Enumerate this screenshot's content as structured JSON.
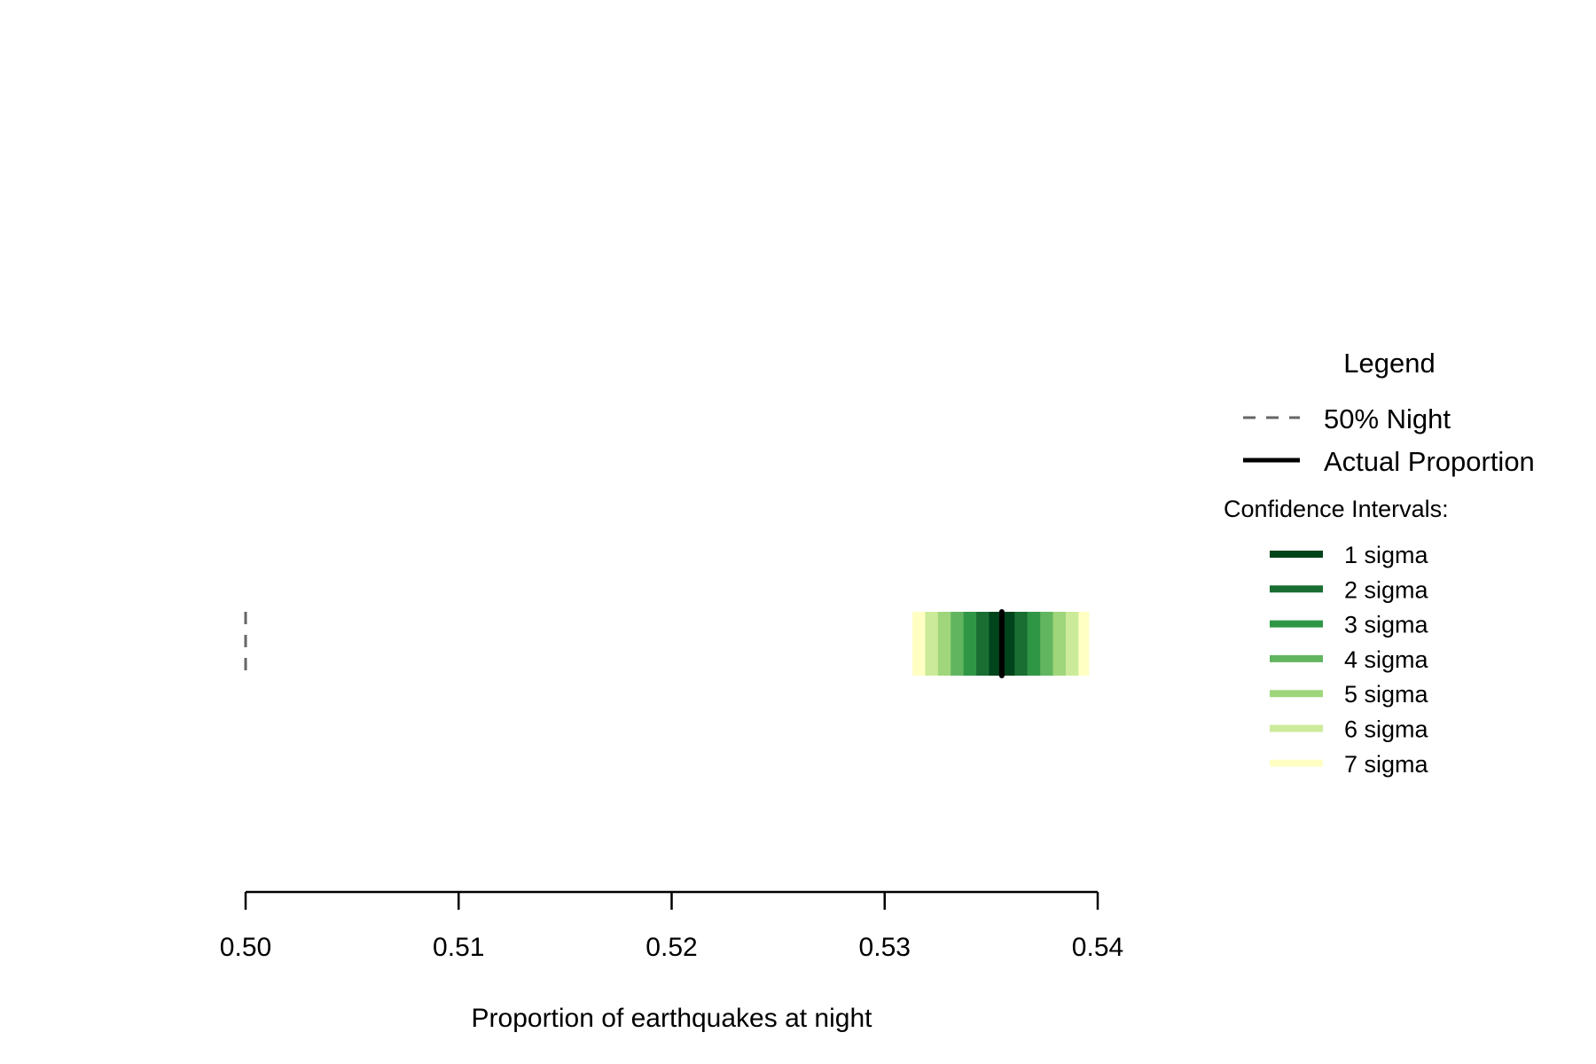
{
  "chart_data": {
    "type": "interval",
    "xlabel": "Proportion of earthquakes at night",
    "xlim": [
      0.5,
      0.54
    ],
    "x_ticks": [
      0.5,
      0.51,
      0.52,
      0.53,
      0.54
    ],
    "x_tick_labels": [
      "0.50",
      "0.51",
      "0.52",
      "0.53",
      "0.54"
    ],
    "reference_line": {
      "label": "50% Night",
      "x": 0.5,
      "color": "#666666",
      "style": "dashed"
    },
    "actual_proportion": {
      "label": "Actual Proportion",
      "x": 0.5355,
      "color": "#000000"
    },
    "confidence_intervals": [
      {
        "label": "1 sigma",
        "sigma": 1,
        "lower": 0.5349,
        "upper": 0.5361,
        "color": "#00441b"
      },
      {
        "label": "2 sigma",
        "sigma": 2,
        "lower": 0.5343,
        "upper": 0.5367,
        "color": "#1a6e32"
      },
      {
        "label": "3 sigma",
        "sigma": 3,
        "lower": 0.5337,
        "upper": 0.5373,
        "color": "#2f9646"
      },
      {
        "label": "4 sigma",
        "sigma": 4,
        "lower": 0.5331,
        "upper": 0.5379,
        "color": "#62b55f"
      },
      {
        "label": "5 sigma",
        "sigma": 5,
        "lower": 0.5325,
        "upper": 0.5385,
        "color": "#9fd67c"
      },
      {
        "label": "6 sigma",
        "sigma": 6,
        "lower": 0.5319,
        "upper": 0.5391,
        "color": "#cceb9a"
      },
      {
        "label": "7 sigma",
        "sigma": 7,
        "lower": 0.5313,
        "upper": 0.5396,
        "color": "#ffffc4"
      }
    ],
    "legend": {
      "title": "Legend",
      "subtitle": "Confidence Intervals:",
      "position": "right"
    },
    "grid": false
  }
}
